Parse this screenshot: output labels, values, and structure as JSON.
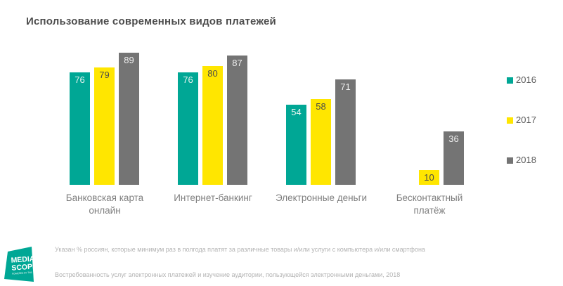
{
  "title": "Использование современных видов платежей",
  "legend": [
    {
      "label": "2016",
      "color": "#00a795"
    },
    {
      "label": "2017",
      "color": "#ffe600"
    },
    {
      "label": "2018",
      "color": "#747474"
    }
  ],
  "chart_data": {
    "type": "bar",
    "title": "Использование современных видов платежей",
    "categories": [
      "Банковская карта онлайн",
      "Интернет-банкинг",
      "Электронные деньги",
      "Бесконтактный платёж"
    ],
    "categories_display": [
      "Банковская карта\nонлайн",
      "Интернет-банкинг",
      "Электронные деньги",
      "Бесконтактный\nплатёж"
    ],
    "series": [
      {
        "name": "2016",
        "color": "#00a795",
        "label_color": "#e9f4f1",
        "values": [
          76,
          76,
          54,
          null
        ]
      },
      {
        "name": "2017",
        "color": "#ffe600",
        "label_color": "#4a4a4a",
        "values": [
          79,
          80,
          58,
          10
        ]
      },
      {
        "name": "2018",
        "color": "#747474",
        "label_color": "#f0f0f0",
        "values": [
          89,
          87,
          71,
          36
        ]
      }
    ],
    "ylim": [
      0,
      100
    ],
    "grid": false,
    "legend_position": "right",
    "value_labels": "inside-top"
  },
  "footnotes": [
    "Указан % россиян, которые минимум раз в полгода платят за различные товары и/или услуги с компьютера и/или смартфона",
    "Востребованность услуг электронных платежей и изучение аудитории, пользующейся электронными деньгами, 2018"
  ],
  "logo": {
    "line1": "MEDIA",
    "line2": "SCOPE",
    "tagline": "POWERED BY TNS",
    "color": "#00a795"
  }
}
